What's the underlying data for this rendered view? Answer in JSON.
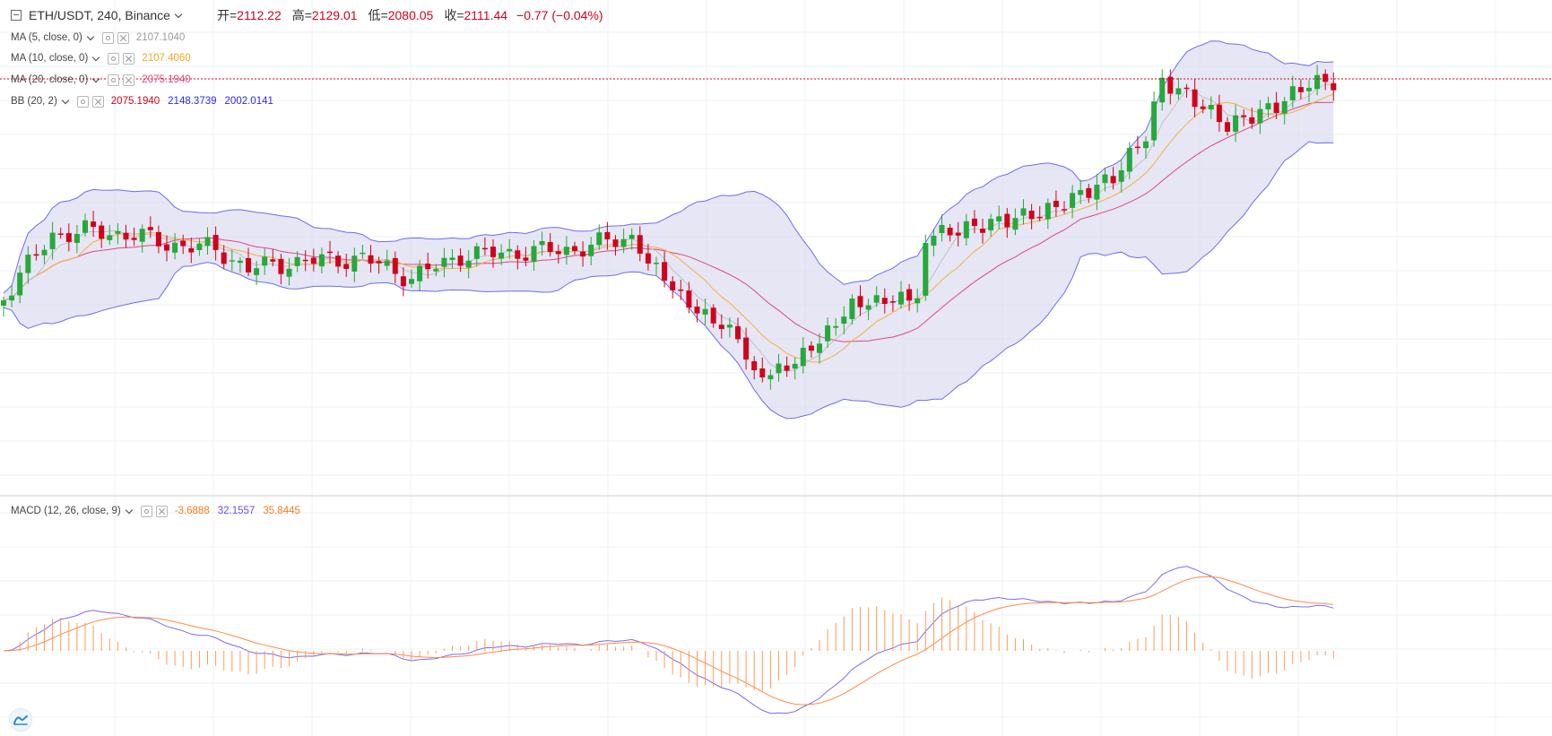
{
  "header": {
    "symbol": "ETH/USDT, 240, Binance",
    "open_label": "开=",
    "open": "2112.22",
    "high_label": "高=",
    "high": "2129.01",
    "low_label": "低=",
    "low": "2080.05",
    "close_label": "收=",
    "close": "2111.44",
    "change": "−0.77 (−0.04%)"
  },
  "indicators": [
    {
      "label": "MA (5, close, 0)",
      "values": [
        "2107.1040"
      ],
      "colors": [
        "#9b9b9b"
      ]
    },
    {
      "label": "MA (10, close, 0)",
      "values": [
        "2107.4060"
      ],
      "colors": [
        "#f5a623"
      ]
    },
    {
      "label": "MA (20, close, 0)",
      "values": [
        "2075.1940"
      ],
      "colors": [
        "#e0487e"
      ]
    },
    {
      "label": "BB (20, 2)",
      "values": [
        "2075.1940",
        "2148.3739",
        "2002.0141"
      ],
      "colors": [
        "#d0021b",
        "#2a2af0",
        "#2a2af0"
      ]
    }
  ],
  "macd": {
    "label": "MACD (12, 26, close, 9)",
    "values": [
      "-3.6888",
      "32.1557",
      "35.8445"
    ],
    "colors": [
      "#ff7a1a",
      "#6b4cf0",
      "#ff7a1a"
    ]
  },
  "colors": {
    "up": "#26a83a",
    "down": "#d0021b",
    "bb_band": "#6d6df0",
    "bb_fill": "#d8d8ee",
    "ma5": "#b9b9b9",
    "ma10": "#f5b041",
    "ma20": "#e0487e",
    "macd_line": "#7a6bf0",
    "signal_line": "#ff8a45",
    "histogram": "#ff9a5a",
    "price_line": "#d0021b",
    "grid": "#eef1f5",
    "separator": "#cfcfcf"
  }
}
